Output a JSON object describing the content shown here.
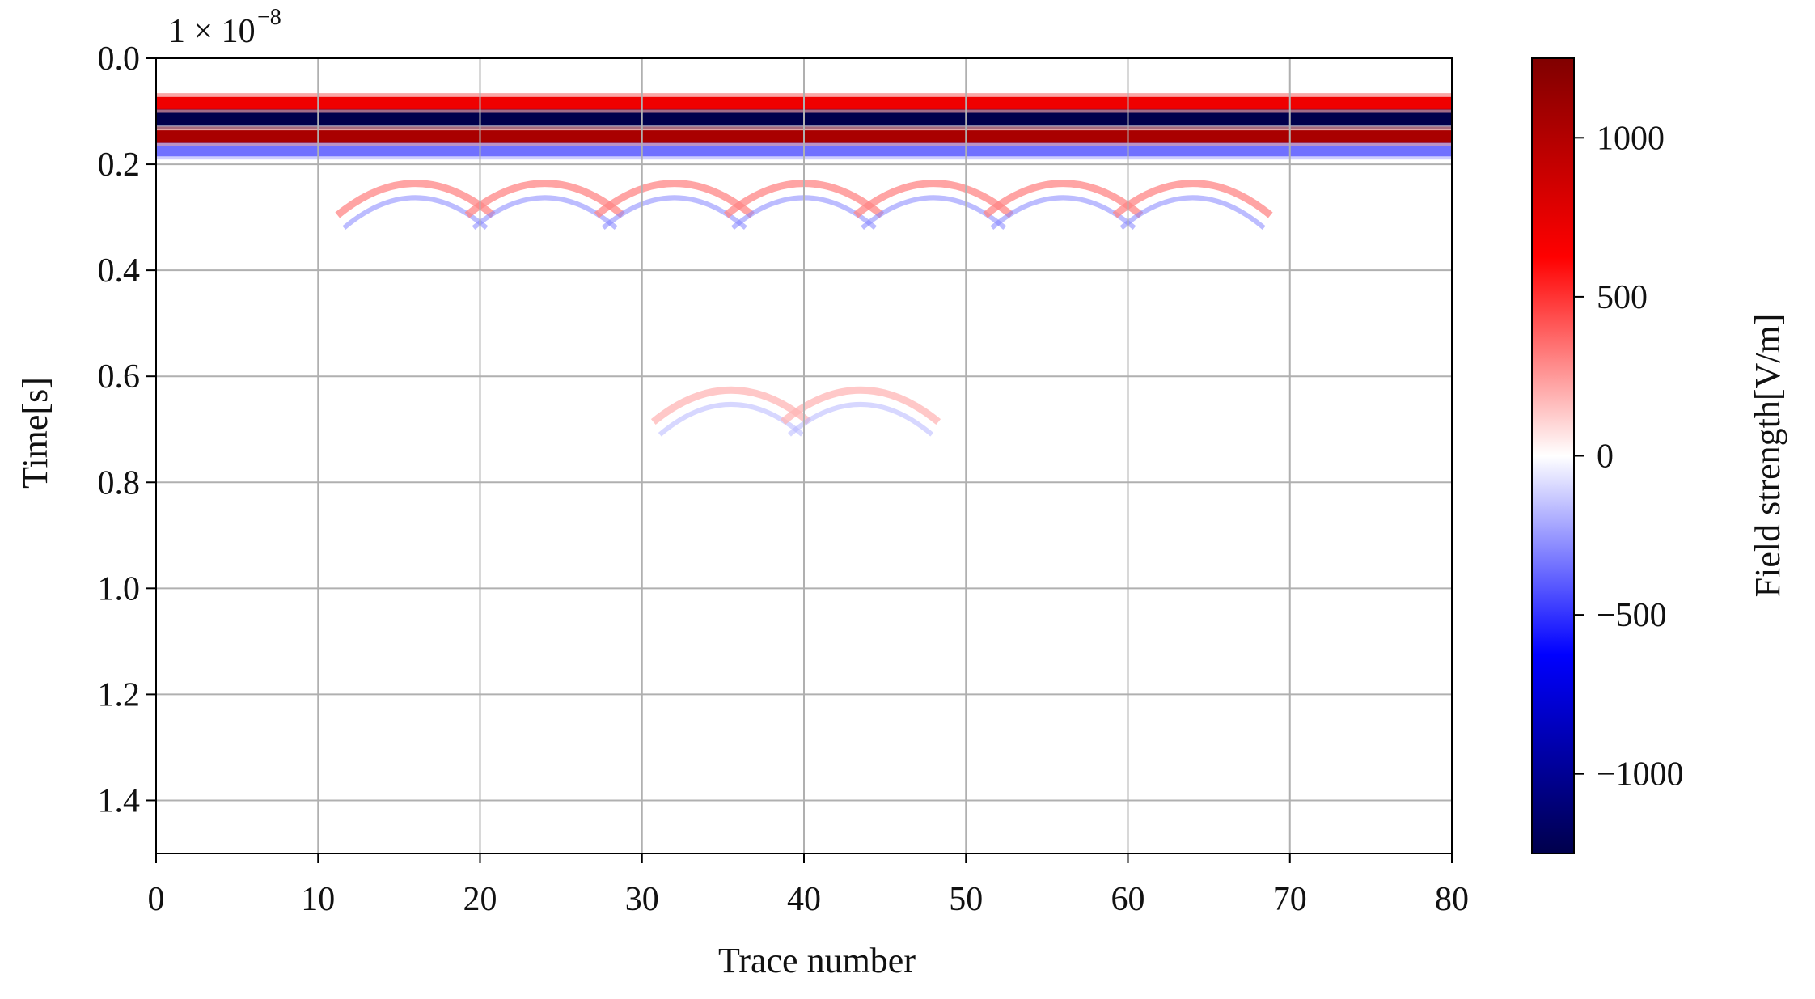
{
  "chart_data": {
    "type": "heatmap",
    "title": "",
    "xlabel": "Trace number",
    "ylabel": "Time[s]",
    "y_scale_label": "1 × 10",
    "y_scale_exponent": "−8",
    "xlim": [
      0,
      80
    ],
    "ylim": [
      1.5,
      0.0
    ],
    "x_ticks": [
      "0",
      "10",
      "20",
      "30",
      "40",
      "50",
      "60",
      "70",
      "80"
    ],
    "x_tick_values": [
      0,
      10,
      20,
      30,
      40,
      50,
      60,
      70,
      80
    ],
    "y_ticks": [
      "0.0",
      "0.2",
      "0.4",
      "0.6",
      "0.8",
      "1.0",
      "1.2",
      "1.4"
    ],
    "y_tick_values": [
      0.0,
      0.2,
      0.4,
      0.6,
      0.8,
      1.0,
      1.2,
      1.4
    ],
    "grid": true,
    "colorbar": {
      "label": "Field strength[V/m]",
      "range": [
        -1250,
        1250
      ],
      "ticks": [
        "1000",
        "500",
        "0",
        "−500",
        "−1000"
      ],
      "tick_values": [
        1000,
        500,
        0,
        -500,
        -1000
      ],
      "colormap": "seismic",
      "colors": {
        "max": "#800000",
        "upper": "#ff0000",
        "mid": "#ffffff",
        "lower": "#0000ff",
        "min": "#00004c"
      }
    },
    "direct_wave_bands": [
      {
        "time": 0.085,
        "value": 700,
        "width": 0.012
      },
      {
        "time": 0.115,
        "value": -1250,
        "width": 0.012
      },
      {
        "time": 0.148,
        "value": 1050,
        "width": 0.012
      },
      {
        "time": 0.175,
        "value": -350,
        "width": 0.01
      }
    ],
    "hyperbola_apexes": [
      {
        "trace": 16,
        "time": 0.23,
        "value": 300
      },
      {
        "trace": 24,
        "time": 0.23,
        "value": 300
      },
      {
        "trace": 32,
        "time": 0.23,
        "value": 300
      },
      {
        "trace": 40,
        "time": 0.23,
        "value": 300
      },
      {
        "trace": 48,
        "time": 0.23,
        "value": 300
      },
      {
        "trace": 56,
        "time": 0.23,
        "value": 300
      },
      {
        "trace": 64,
        "time": 0.23,
        "value": 300
      },
      {
        "trace": 35.5,
        "time": 0.62,
        "value": 180
      },
      {
        "trace": 43.5,
        "time": 0.62,
        "value": 180
      }
    ]
  }
}
